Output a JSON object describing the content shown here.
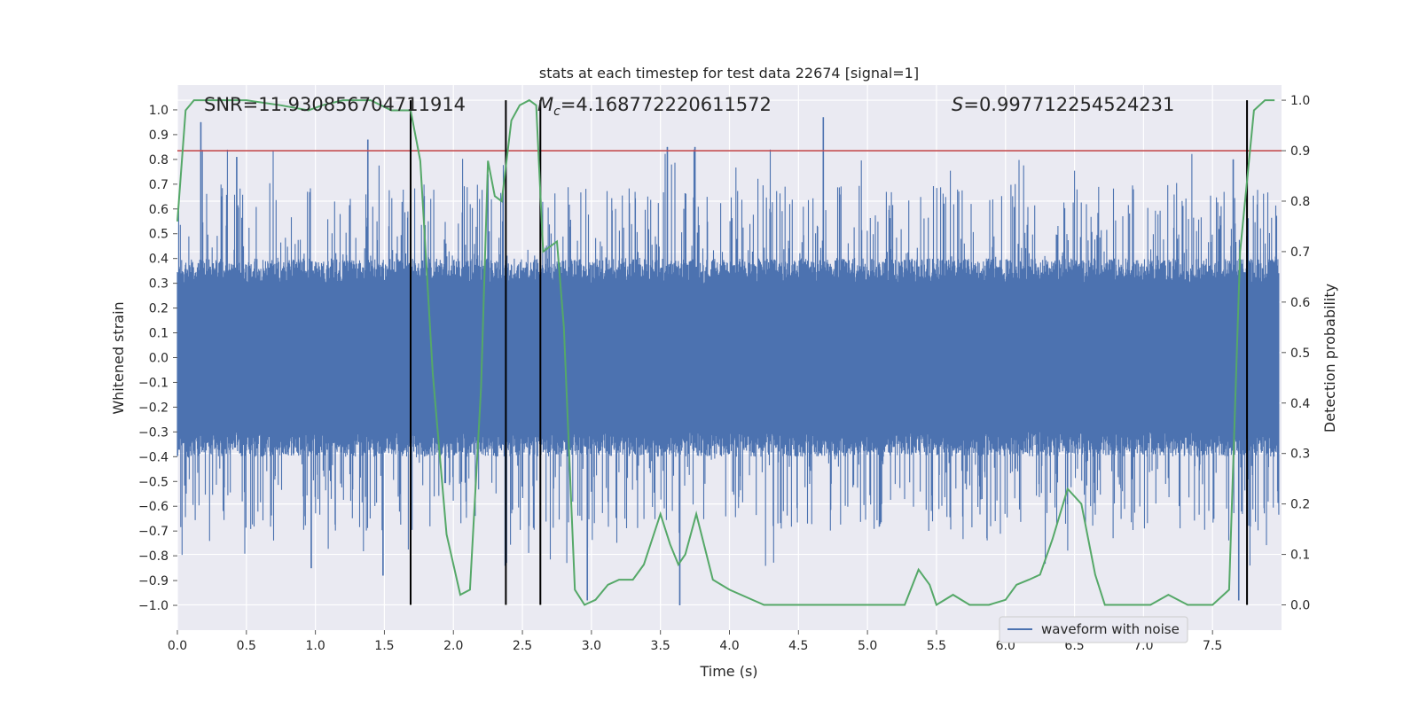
{
  "chart_data": {
    "type": "line",
    "title": "stats at each timestep for test data 22674 [signal=1]",
    "xlabel": "Time (s)",
    "ylabel": "Whitened strain",
    "y2label": "Detection probability",
    "xlim": [
      0.0,
      8.0
    ],
    "ylim": [
      -1.1,
      1.1
    ],
    "y2lim": [
      -0.05,
      1.03
    ],
    "xticks": [
      "0.0",
      "0.5",
      "1.0",
      "1.5",
      "2.0",
      "2.5",
      "3.0",
      "3.5",
      "4.0",
      "4.5",
      "5.0",
      "5.5",
      "6.0",
      "6.5",
      "7.0",
      "7.5"
    ],
    "yticks": [
      "1.0",
      "0.9",
      "0.8",
      "0.7",
      "0.6",
      "0.5",
      "0.4",
      "0.3",
      "0.2",
      "0.1",
      "0.0",
      "−0.1",
      "−0.2",
      "−0.3",
      "−0.4",
      "−0.5",
      "−0.6",
      "−0.7",
      "−0.8",
      "−0.9",
      "−1.0"
    ],
    "y2ticks": [
      "1.0",
      "0.9",
      "0.8",
      "0.7",
      "0.6",
      "0.5",
      "0.4",
      "0.3",
      "0.2",
      "0.1",
      "0.0"
    ],
    "annotations": {
      "snr_label": "SNR=11.930856704711914",
      "mc_symbol": "M",
      "mc_subscript": "c",
      "mc_value": "=4.168772220611572",
      "s_symbol": "S",
      "s_value": "=0.997712254524231"
    },
    "threshold_line": {
      "axis": "y2",
      "value": 0.9,
      "color": "#c44e52"
    },
    "vertical_lines": [
      1.69,
      2.38,
      2.63,
      7.75
    ],
    "legend": {
      "label": "waveform with noise",
      "placement": "lower-right"
    },
    "series": [
      {
        "name": "waveform with noise",
        "axis": "y",
        "color": "#4c72b0",
        "style": "dense noise, amplitude envelope approx 0.35 core with spikes to 0.97 / -1.0",
        "peak_values": [
          {
            "x": 0.17,
            "y": 0.95
          },
          {
            "x": 0.43,
            "y": 0.81
          },
          {
            "x": 1.38,
            "y": 0.88
          },
          {
            "x": 2.25,
            "y": 0.74
          },
          {
            "x": 3.55,
            "y": 0.85
          },
          {
            "x": 3.75,
            "y": 0.85
          },
          {
            "x": 4.68,
            "y": 0.97
          },
          {
            "x": 7.65,
            "y": 0.8
          },
          {
            "x": 1.49,
            "y": -0.88
          },
          {
            "x": 0.97,
            "y": -0.85
          },
          {
            "x": 2.97,
            "y": -0.98
          },
          {
            "x": 3.64,
            "y": -1.0
          },
          {
            "x": 7.69,
            "y": -0.98
          }
        ]
      },
      {
        "name": "Detection probability",
        "axis": "y2",
        "color": "#55a868",
        "x": [
          0.0,
          0.06,
          0.12,
          0.5,
          0.75,
          0.95,
          1.05,
          1.2,
          1.4,
          1.55,
          1.62,
          1.69,
          1.76,
          1.85,
          1.95,
          2.05,
          2.12,
          2.2,
          2.25,
          2.3,
          2.35,
          2.42,
          2.48,
          2.55,
          2.6,
          2.65,
          2.75,
          2.8,
          2.88,
          2.95,
          3.03,
          3.12,
          3.2,
          3.3,
          3.38,
          3.5,
          3.57,
          3.63,
          3.68,
          3.76,
          3.88,
          4.0,
          4.25,
          4.6,
          4.8,
          5.1,
          5.27,
          5.37,
          5.45,
          5.5,
          5.62,
          5.74,
          5.88,
          6.0,
          6.08,
          6.17,
          6.25,
          6.34,
          6.45,
          6.55,
          6.65,
          6.72,
          6.82,
          7.05,
          7.18,
          7.32,
          7.5,
          7.62,
          7.7,
          7.8,
          7.88,
          7.95
        ],
        "y": [
          0.76,
          0.98,
          1.0,
          1.0,
          0.99,
          0.98,
          0.99,
          1.0,
          1.0,
          0.98,
          0.98,
          0.98,
          0.88,
          0.46,
          0.14,
          0.02,
          0.03,
          0.43,
          0.88,
          0.81,
          0.8,
          0.96,
          0.99,
          1.0,
          0.99,
          0.7,
          0.72,
          0.55,
          0.03,
          0.0,
          0.01,
          0.04,
          0.05,
          0.05,
          0.08,
          0.18,
          0.12,
          0.08,
          0.1,
          0.18,
          0.05,
          0.03,
          0.0,
          0.0,
          0.0,
          0.0,
          0.0,
          0.07,
          0.04,
          0.0,
          0.02,
          0.0,
          0.0,
          0.01,
          0.04,
          0.05,
          0.06,
          0.13,
          0.23,
          0.2,
          0.06,
          0.0,
          0.0,
          0.0,
          0.02,
          0.0,
          0.0,
          0.03,
          0.7,
          0.98,
          1.0,
          1.0
        ]
      }
    ]
  }
}
